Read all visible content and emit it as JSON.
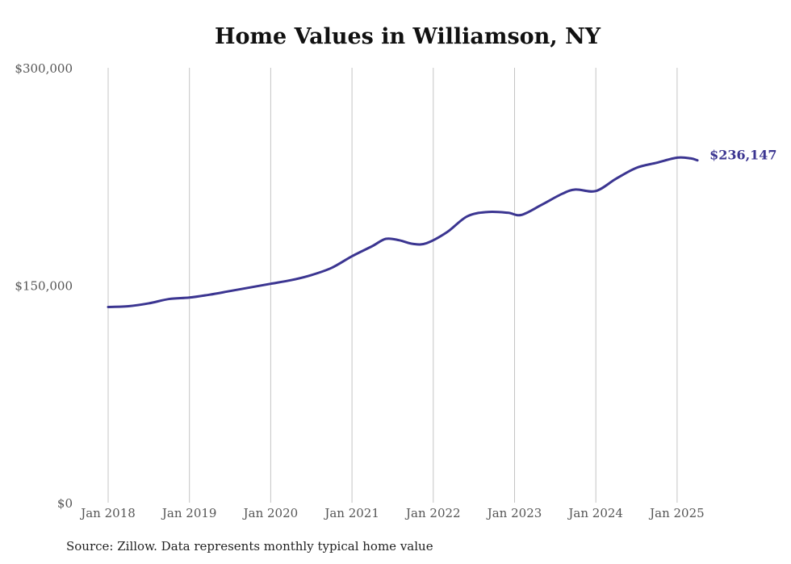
{
  "chart_data": {
    "type": "line",
    "title": "Home Values in Williamson, NY",
    "source": "Source: Zillow. Data represents monthly typical home value",
    "ylim": [
      0,
      300000
    ],
    "y_ticks": [
      "$0",
      "$150,000",
      "$300,000"
    ],
    "y_tick_values": [
      0,
      150000,
      300000
    ],
    "x_ticks": [
      "Jan 2018",
      "Jan 2019",
      "Jan 2020",
      "Jan 2021",
      "Jan 2022",
      "Jan 2023",
      "Jan 2024",
      "Jan 2025"
    ],
    "grid": "vertical",
    "line_color": "#3b3591",
    "end_label": "$236,147",
    "series": [
      {
        "x": [
          "2018-01",
          "2018-04",
          "2018-07",
          "2018-10",
          "2019-01",
          "2019-04",
          "2019-07",
          "2019-10",
          "2020-01",
          "2020-04",
          "2020-07",
          "2020-10",
          "2021-01",
          "2021-04",
          "2021-06",
          "2021-08",
          "2021-10",
          "2021-12",
          "2022-03",
          "2022-06",
          "2022-09",
          "2022-12",
          "2023-02",
          "2023-05",
          "2023-08",
          "2023-10",
          "2024-01",
          "2024-04",
          "2024-07",
          "2024-10",
          "2025-01",
          "2025-03",
          "2025-04"
        ],
        "values": [
          135000,
          135500,
          137500,
          140500,
          141500,
          143500,
          146000,
          148500,
          151000,
          153500,
          157000,
          162000,
          170000,
          177000,
          182000,
          181000,
          178500,
          179000,
          186500,
          197500,
          200500,
          200000,
          198500,
          205500,
          213000,
          216000,
          215000,
          223500,
          231000,
          234500,
          238000,
          237500,
          236147
        ]
      }
    ]
  }
}
